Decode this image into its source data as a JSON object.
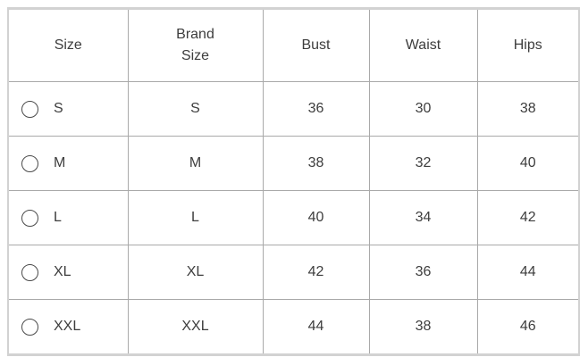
{
  "table": {
    "columns": [
      {
        "label": "Size"
      },
      {
        "label": "Brand Size"
      },
      {
        "label": "Bust"
      },
      {
        "label": "Waist"
      },
      {
        "label": "Hips"
      }
    ],
    "rows": [
      {
        "size": "S",
        "brand_size": "S",
        "bust": "36",
        "waist": "30",
        "hips": "38",
        "radio_checked": false
      },
      {
        "size": "M",
        "brand_size": "M",
        "bust": "38",
        "waist": "32",
        "hips": "40",
        "radio_checked": false
      },
      {
        "size": "L",
        "brand_size": "L",
        "bust": "40",
        "waist": "34",
        "hips": "42",
        "radio_checked": false
      },
      {
        "size": "XL",
        "brand_size": "XL",
        "bust": "42",
        "waist": "36",
        "hips": "44",
        "radio_checked": false
      },
      {
        "size": "XXL",
        "brand_size": "XXL",
        "bust": "44",
        "waist": "38",
        "hips": "46",
        "radio_checked": false
      }
    ]
  },
  "icons": {
    "radio": "unchecked-radio-circle"
  },
  "colors": {
    "text": "#3d3d3d",
    "grid_line": "#a9a9a9",
    "outer_border": "#d2d2d2",
    "radio_border": "#4a4a4a",
    "background": "#ffffff"
  }
}
